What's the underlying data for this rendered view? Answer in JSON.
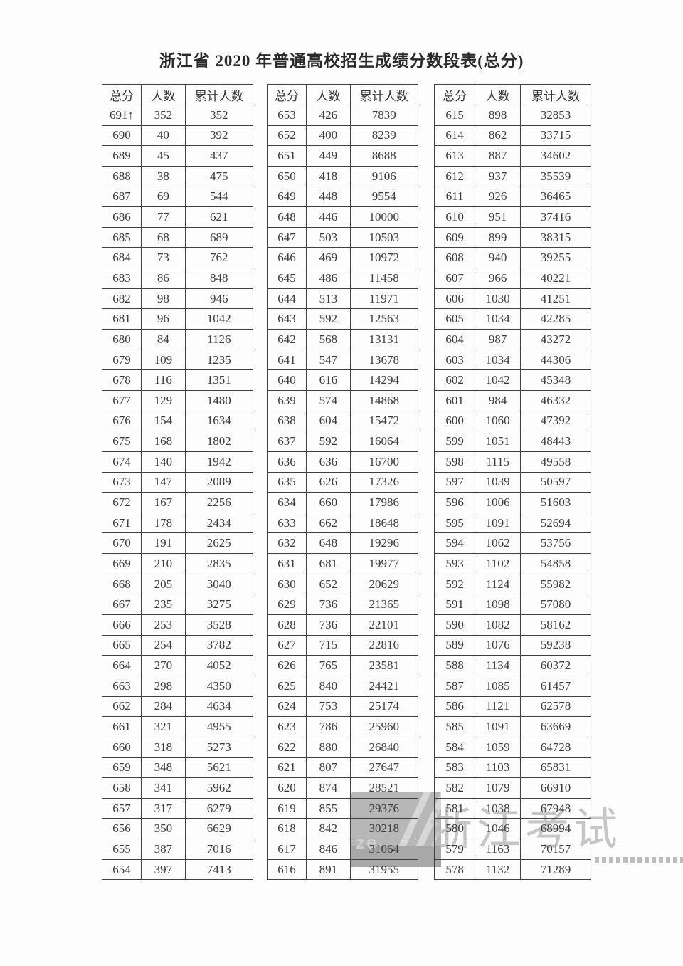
{
  "page": {
    "title": "浙江省 2020 年普通高校招生成绩分数段表(总分)"
  },
  "table_headers": {
    "score": "总分",
    "count": "人数",
    "cumulative": "累计人数"
  },
  "tables": [
    {
      "rows": [
        [
          "691↑",
          "352",
          "352"
        ],
        [
          "690",
          "40",
          "392"
        ],
        [
          "689",
          "45",
          "437"
        ],
        [
          "688",
          "38",
          "475"
        ],
        [
          "687",
          "69",
          "544"
        ],
        [
          "686",
          "77",
          "621"
        ],
        [
          "685",
          "68",
          "689"
        ],
        [
          "684",
          "73",
          "762"
        ],
        [
          "683",
          "86",
          "848"
        ],
        [
          "682",
          "98",
          "946"
        ],
        [
          "681",
          "96",
          "1042"
        ],
        [
          "680",
          "84",
          "1126"
        ],
        [
          "679",
          "109",
          "1235"
        ],
        [
          "678",
          "116",
          "1351"
        ],
        [
          "677",
          "129",
          "1480"
        ],
        [
          "676",
          "154",
          "1634"
        ],
        [
          "675",
          "168",
          "1802"
        ],
        [
          "674",
          "140",
          "1942"
        ],
        [
          "673",
          "147",
          "2089"
        ],
        [
          "672",
          "167",
          "2256"
        ],
        [
          "671",
          "178",
          "2434"
        ],
        [
          "670",
          "191",
          "2625"
        ],
        [
          "669",
          "210",
          "2835"
        ],
        [
          "668",
          "205",
          "3040"
        ],
        [
          "667",
          "235",
          "3275"
        ],
        [
          "666",
          "253",
          "3528"
        ],
        [
          "665",
          "254",
          "3782"
        ],
        [
          "664",
          "270",
          "4052"
        ],
        [
          "663",
          "298",
          "4350"
        ],
        [
          "662",
          "284",
          "4634"
        ],
        [
          "661",
          "321",
          "4955"
        ],
        [
          "660",
          "318",
          "5273"
        ],
        [
          "659",
          "348",
          "5621"
        ],
        [
          "658",
          "341",
          "5962"
        ],
        [
          "657",
          "317",
          "6279"
        ],
        [
          "656",
          "350",
          "6629"
        ],
        [
          "655",
          "387",
          "7016"
        ],
        [
          "654",
          "397",
          "7413"
        ]
      ]
    },
    {
      "rows": [
        [
          "653",
          "426",
          "7839"
        ],
        [
          "652",
          "400",
          "8239"
        ],
        [
          "651",
          "449",
          "8688"
        ],
        [
          "650",
          "418",
          "9106"
        ],
        [
          "649",
          "448",
          "9554"
        ],
        [
          "648",
          "446",
          "10000"
        ],
        [
          "647",
          "503",
          "10503"
        ],
        [
          "646",
          "469",
          "10972"
        ],
        [
          "645",
          "486",
          "11458"
        ],
        [
          "644",
          "513",
          "11971"
        ],
        [
          "643",
          "592",
          "12563"
        ],
        [
          "642",
          "568",
          "13131"
        ],
        [
          "641",
          "547",
          "13678"
        ],
        [
          "640",
          "616",
          "14294"
        ],
        [
          "639",
          "574",
          "14868"
        ],
        [
          "638",
          "604",
          "15472"
        ],
        [
          "637",
          "592",
          "16064"
        ],
        [
          "636",
          "636",
          "16700"
        ],
        [
          "635",
          "626",
          "17326"
        ],
        [
          "634",
          "660",
          "17986"
        ],
        [
          "633",
          "662",
          "18648"
        ],
        [
          "632",
          "648",
          "19296"
        ],
        [
          "631",
          "681",
          "19977"
        ],
        [
          "630",
          "652",
          "20629"
        ],
        [
          "629",
          "736",
          "21365"
        ],
        [
          "628",
          "736",
          "22101"
        ],
        [
          "627",
          "715",
          "22816"
        ],
        [
          "626",
          "765",
          "23581"
        ],
        [
          "625",
          "840",
          "24421"
        ],
        [
          "624",
          "753",
          "25174"
        ],
        [
          "623",
          "786",
          "25960"
        ],
        [
          "622",
          "880",
          "26840"
        ],
        [
          "621",
          "807",
          "27647"
        ],
        [
          "620",
          "874",
          "28521"
        ],
        [
          "619",
          "855",
          "29376"
        ],
        [
          "618",
          "842",
          "30218"
        ],
        [
          "617",
          "846",
          "31064"
        ],
        [
          "616",
          "891",
          "31955"
        ]
      ]
    },
    {
      "rows": [
        [
          "615",
          "898",
          "32853"
        ],
        [
          "614",
          "862",
          "33715"
        ],
        [
          "613",
          "887",
          "34602"
        ],
        [
          "612",
          "937",
          "35539"
        ],
        [
          "611",
          "926",
          "36465"
        ],
        [
          "610",
          "951",
          "37416"
        ],
        [
          "609",
          "899",
          "38315"
        ],
        [
          "608",
          "940",
          "39255"
        ],
        [
          "607",
          "966",
          "40221"
        ],
        [
          "606",
          "1030",
          "41251"
        ],
        [
          "605",
          "1034",
          "42285"
        ],
        [
          "604",
          "987",
          "43272"
        ],
        [
          "603",
          "1034",
          "44306"
        ],
        [
          "602",
          "1042",
          "45348"
        ],
        [
          "601",
          "984",
          "46332"
        ],
        [
          "600",
          "1060",
          "47392"
        ],
        [
          "599",
          "1051",
          "48443"
        ],
        [
          "598",
          "1115",
          "49558"
        ],
        [
          "597",
          "1039",
          "50597"
        ],
        [
          "596",
          "1006",
          "51603"
        ],
        [
          "595",
          "1091",
          "52694"
        ],
        [
          "594",
          "1062",
          "53756"
        ],
        [
          "593",
          "1102",
          "54858"
        ],
        [
          "592",
          "1124",
          "55982"
        ],
        [
          "591",
          "1098",
          "57080"
        ],
        [
          "590",
          "1082",
          "58162"
        ],
        [
          "589",
          "1076",
          "59238"
        ],
        [
          "588",
          "1134",
          "60372"
        ],
        [
          "587",
          "1085",
          "61457"
        ],
        [
          "586",
          "1121",
          "62578"
        ],
        [
          "585",
          "1091",
          "63669"
        ],
        [
          "584",
          "1059",
          "64728"
        ],
        [
          "583",
          "1103",
          "65831"
        ],
        [
          "582",
          "1079",
          "66910"
        ],
        [
          "581",
          "1038",
          "67948"
        ],
        [
          "580",
          "1046",
          "68994"
        ],
        [
          "579",
          "1163",
          "70157"
        ],
        [
          "578",
          "1132",
          "71289"
        ]
      ]
    }
  ],
  "watermark": {
    "text": "浙江考试",
    "logo_letters": "ze",
    "text_color": "#c6c6c6",
    "logo_color": "#b7b7b7"
  }
}
